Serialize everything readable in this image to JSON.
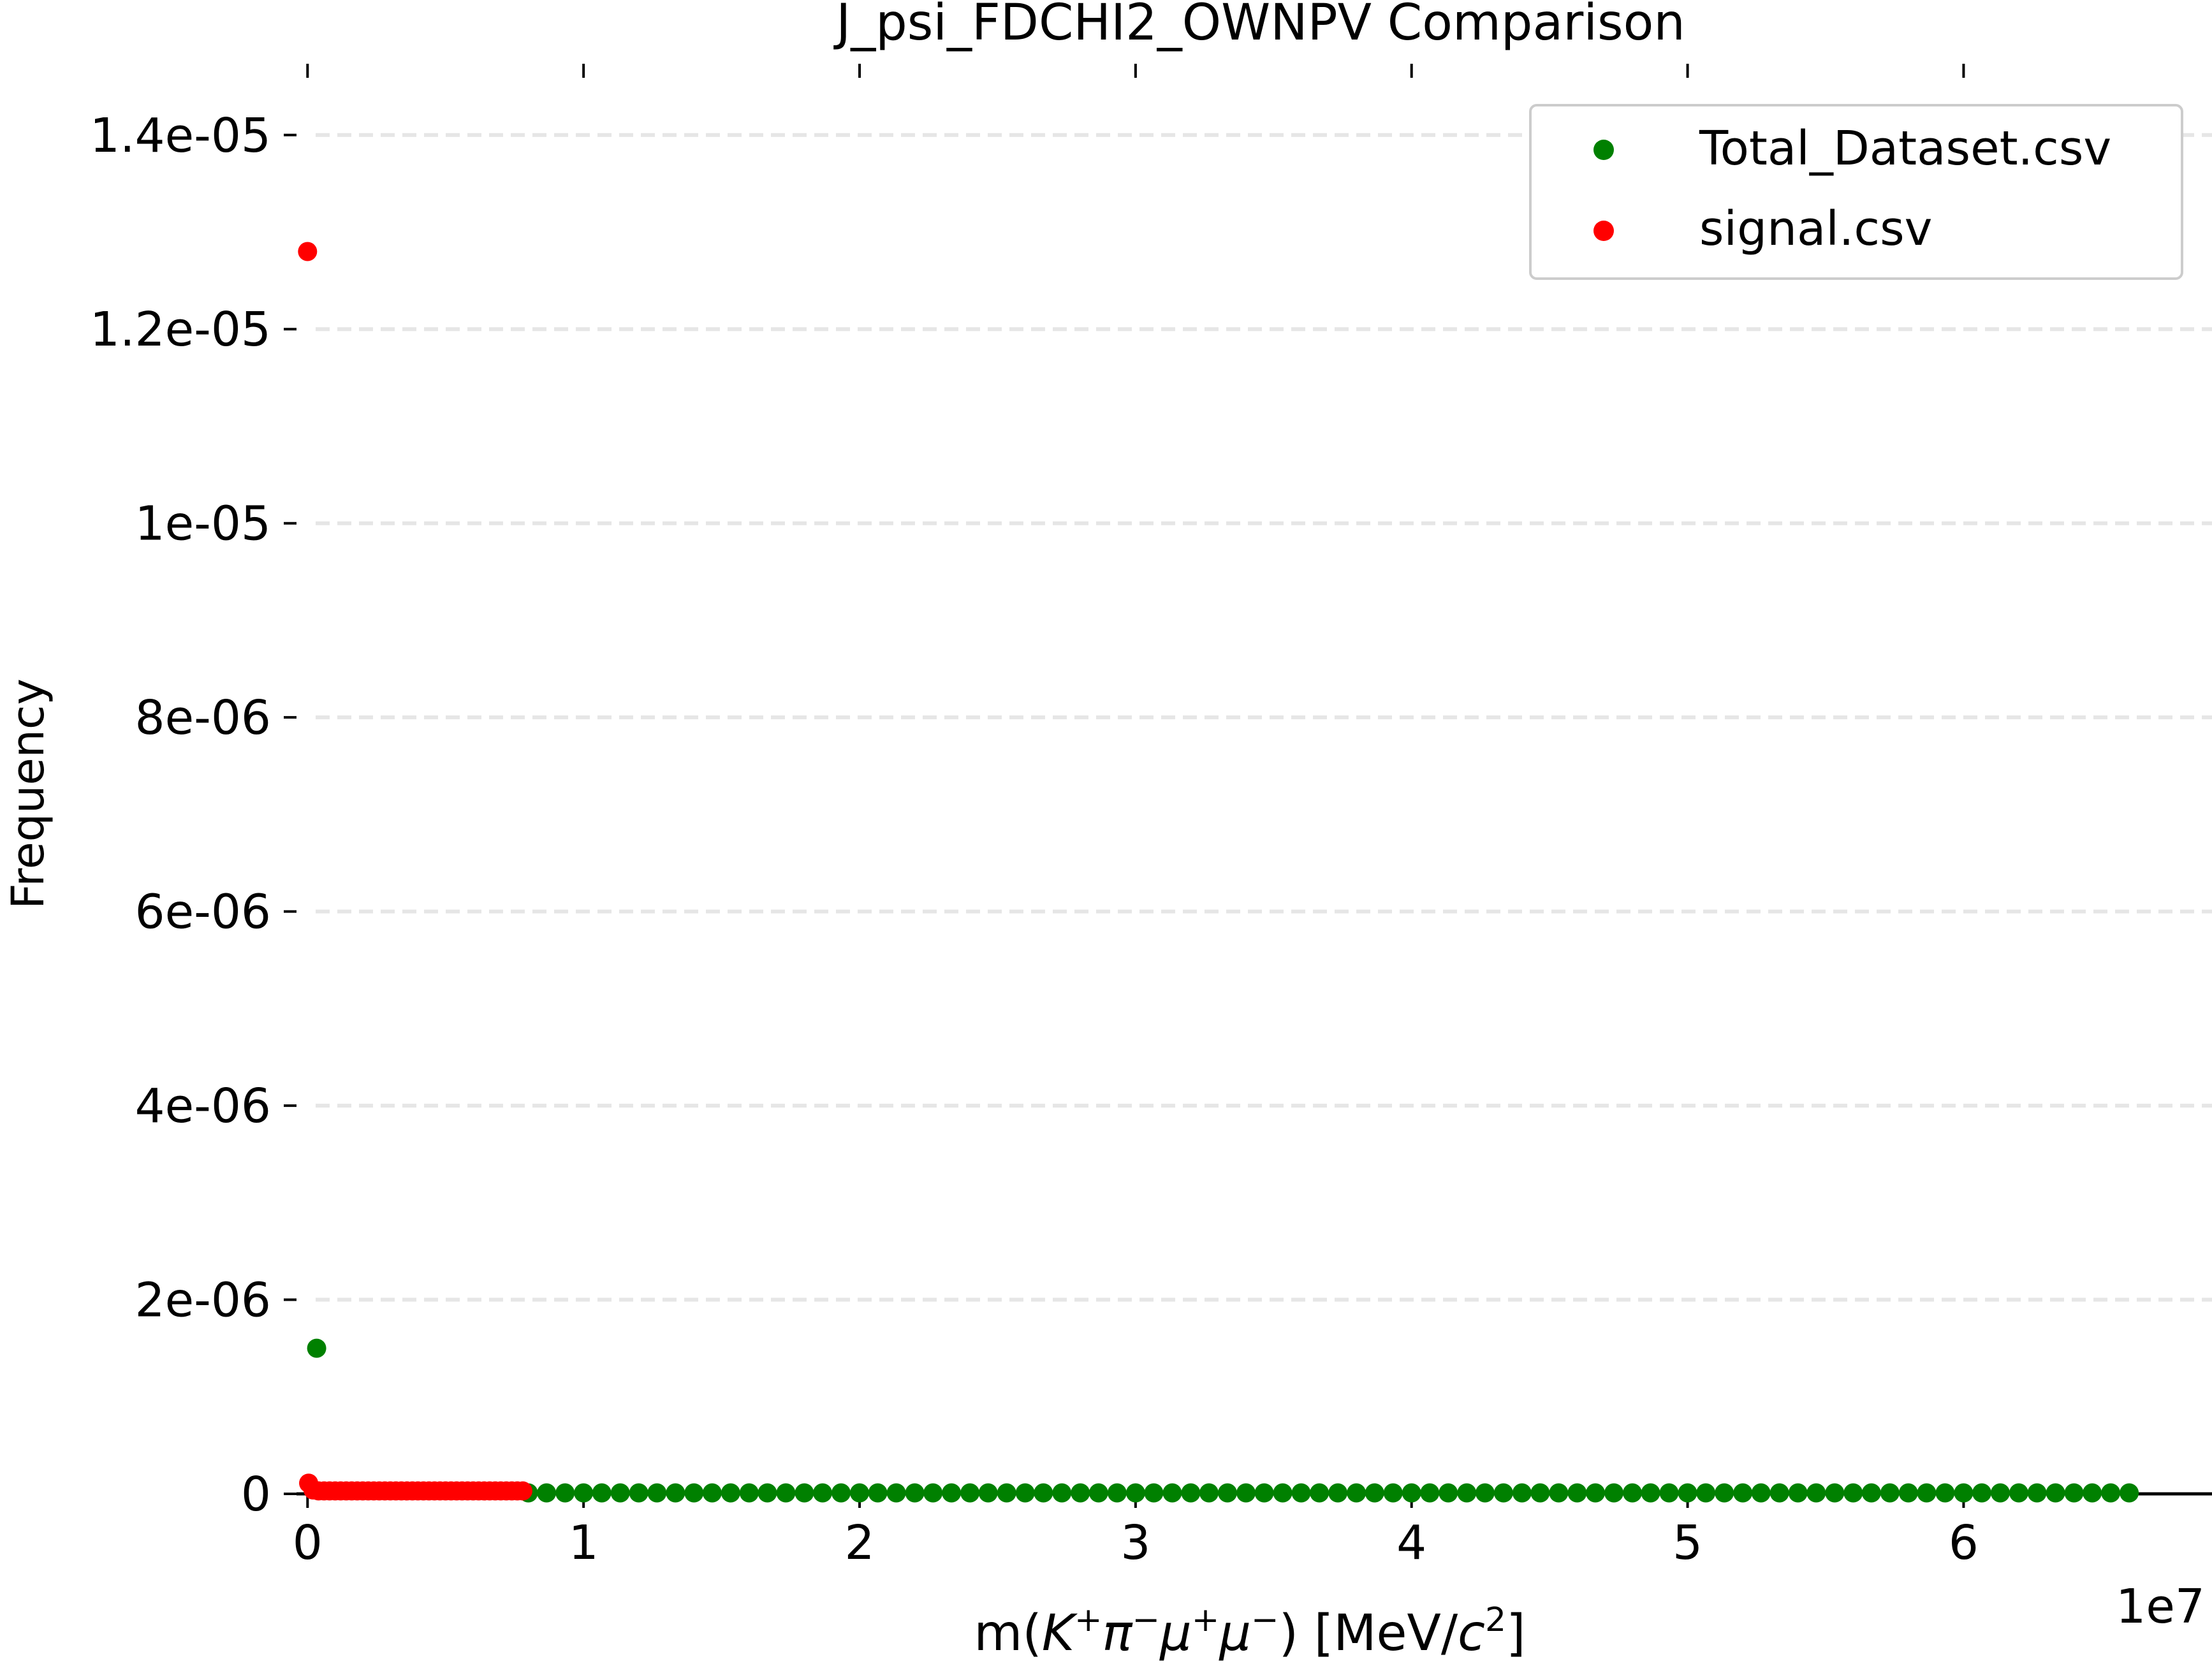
{
  "chart_data": {
    "type": "scatter",
    "title": "J_psi_FDCHI2_OWNPV Comparison",
    "xlabel": "m(K⁺π⁻μ⁺μ⁻) [MeV/c²]",
    "ylabel": "Frequency",
    "x_offset_label": "1e7",
    "xlim": [
      -0.04,
      6.9
    ],
    "ylim": [
      0,
      1.48e-05
    ],
    "x_ticks": [
      0,
      1,
      2,
      3,
      4,
      5,
      6
    ],
    "x_tick_labels": [
      "0",
      "1",
      "2",
      "3",
      "4",
      "5",
      "6"
    ],
    "y_ticks": [
      0,
      2e-06,
      4e-06,
      6e-06,
      8e-06,
      1e-05,
      1.2e-05,
      1.4e-05
    ],
    "y_tick_labels": [
      "0",
      "2e-06",
      "4e-06",
      "6e-06",
      "8e-06",
      "1e-05",
      "1.2e-05",
      "1.4e-05"
    ],
    "grid": "horizontal dashed",
    "legend_position": "top-right",
    "series": [
      {
        "name": "Total_Dataset.csv",
        "color": "#008000",
        "points": [
          [
            0.033,
            1.5e-06
          ],
          [
            0.8,
            1e-08
          ],
          [
            0.866,
            1e-08
          ],
          [
            0.933,
            1e-08
          ],
          [
            1.0,
            1e-08
          ],
          [
            1.066,
            1e-08
          ],
          [
            1.133,
            1e-08
          ],
          [
            1.2,
            1e-08
          ],
          [
            1.266,
            1e-08
          ],
          [
            1.333,
            1e-08
          ],
          [
            1.4,
            1e-08
          ],
          [
            1.466,
            1e-08
          ],
          [
            1.533,
            1e-08
          ],
          [
            1.6,
            1e-08
          ],
          [
            1.666,
            1e-08
          ],
          [
            1.733,
            1e-08
          ],
          [
            1.8,
            1e-08
          ],
          [
            1.866,
            1e-08
          ],
          [
            1.933,
            1e-08
          ],
          [
            2.0,
            1e-08
          ],
          [
            2.066,
            1e-08
          ],
          [
            2.133,
            1e-08
          ],
          [
            2.2,
            1e-08
          ],
          [
            2.266,
            1e-08
          ],
          [
            2.333,
            1e-08
          ],
          [
            2.4,
            1e-08
          ],
          [
            2.466,
            1e-08
          ],
          [
            2.533,
            1e-08
          ],
          [
            2.6,
            1e-08
          ],
          [
            2.666,
            1e-08
          ],
          [
            2.733,
            1e-08
          ],
          [
            2.8,
            1e-08
          ],
          [
            2.866,
            1e-08
          ],
          [
            2.933,
            1e-08
          ],
          [
            3.0,
            1e-08
          ],
          [
            3.066,
            1e-08
          ],
          [
            3.133,
            1e-08
          ],
          [
            3.2,
            1e-08
          ],
          [
            3.266,
            1e-08
          ],
          [
            3.333,
            1e-08
          ],
          [
            3.4,
            1e-08
          ],
          [
            3.466,
            1e-08
          ],
          [
            3.533,
            1e-08
          ],
          [
            3.6,
            1e-08
          ],
          [
            3.666,
            1e-08
          ],
          [
            3.733,
            1e-08
          ],
          [
            3.8,
            1e-08
          ],
          [
            3.866,
            1e-08
          ],
          [
            3.933,
            1e-08
          ],
          [
            4.0,
            1e-08
          ],
          [
            4.066,
            1e-08
          ],
          [
            4.133,
            1e-08
          ],
          [
            4.2,
            1e-08
          ],
          [
            4.266,
            1e-08
          ],
          [
            4.333,
            1e-08
          ],
          [
            4.4,
            1e-08
          ],
          [
            4.466,
            1e-08
          ],
          [
            4.533,
            1e-08
          ],
          [
            4.6,
            1e-08
          ],
          [
            4.666,
            1e-08
          ],
          [
            4.733,
            1e-08
          ],
          [
            4.8,
            1e-08
          ],
          [
            4.866,
            1e-08
          ],
          [
            4.933,
            1e-08
          ],
          [
            5.0,
            1e-08
          ],
          [
            5.066,
            1e-08
          ],
          [
            5.133,
            1e-08
          ],
          [
            5.2,
            1e-08
          ],
          [
            5.266,
            1e-08
          ],
          [
            5.333,
            1e-08
          ],
          [
            5.4,
            1e-08
          ],
          [
            5.466,
            1e-08
          ],
          [
            5.533,
            1e-08
          ],
          [
            5.6,
            1e-08
          ],
          [
            5.666,
            1e-08
          ],
          [
            5.733,
            1e-08
          ],
          [
            5.8,
            1e-08
          ],
          [
            5.866,
            1e-08
          ],
          [
            5.933,
            1e-08
          ],
          [
            6.0,
            1e-08
          ],
          [
            6.066,
            1e-08
          ],
          [
            6.133,
            1e-08
          ],
          [
            6.2,
            1e-08
          ],
          [
            6.266,
            1e-08
          ],
          [
            6.333,
            1e-08
          ],
          [
            6.4,
            1e-08
          ],
          [
            6.466,
            1e-08
          ],
          [
            6.533,
            1e-08
          ],
          [
            6.6,
            1e-08
          ]
        ]
      },
      {
        "name": "signal.csv",
        "color": "#ff0000",
        "points": [
          [
            0.0,
            1.28e-05
          ],
          [
            0.004,
            1.1e-07
          ],
          [
            0.02,
            4e-08
          ],
          [
            0.04,
            3e-08
          ],
          [
            0.06,
            3e-08
          ],
          [
            0.08,
            3e-08
          ],
          [
            0.1,
            3e-08
          ],
          [
            0.12,
            3e-08
          ],
          [
            0.14,
            3e-08
          ],
          [
            0.16,
            3e-08
          ],
          [
            0.18,
            3e-08
          ],
          [
            0.2,
            3e-08
          ],
          [
            0.22,
            3e-08
          ],
          [
            0.24,
            3e-08
          ],
          [
            0.26,
            3e-08
          ],
          [
            0.28,
            3e-08
          ],
          [
            0.3,
            3e-08
          ],
          [
            0.32,
            3e-08
          ],
          [
            0.34,
            3e-08
          ],
          [
            0.36,
            3e-08
          ],
          [
            0.38,
            3e-08
          ],
          [
            0.4,
            3e-08
          ],
          [
            0.42,
            3e-08
          ],
          [
            0.44,
            3e-08
          ],
          [
            0.46,
            3e-08
          ],
          [
            0.48,
            3e-08
          ],
          [
            0.5,
            3e-08
          ],
          [
            0.52,
            3e-08
          ],
          [
            0.54,
            3e-08
          ],
          [
            0.56,
            3e-08
          ],
          [
            0.58,
            3e-08
          ],
          [
            0.6,
            3e-08
          ],
          [
            0.62,
            3e-08
          ],
          [
            0.64,
            3e-08
          ],
          [
            0.66,
            3e-08
          ],
          [
            0.68,
            3e-08
          ],
          [
            0.7,
            3e-08
          ],
          [
            0.72,
            3e-08
          ],
          [
            0.74,
            3e-08
          ],
          [
            0.76,
            3e-08
          ],
          [
            0.78,
            3e-08
          ]
        ]
      }
    ]
  }
}
